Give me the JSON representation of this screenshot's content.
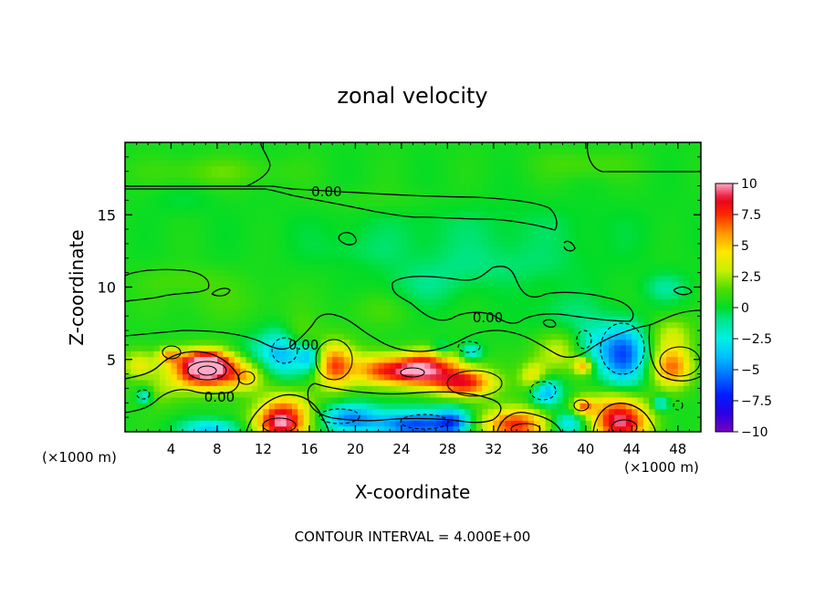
{
  "chart_data": {
    "type": "heatmap",
    "title": "zonal velocity",
    "xlabel": "X-coordinate",
    "ylabel": "Z-coordinate",
    "x_unit_left": "(×1000 m)",
    "x_unit_right": "(×1000 m)",
    "footer": "CONTOUR INTERVAL = 4.000E+00",
    "xlim": [
      0,
      50
    ],
    "ylim": [
      0,
      20
    ],
    "x_ticks": [
      4,
      8,
      12,
      16,
      20,
      24,
      28,
      32,
      36,
      40,
      44,
      48
    ],
    "x_tick_labels": [
      "4",
      "8",
      "12",
      "16",
      "20",
      "24",
      "28",
      "32",
      "36",
      "40",
      "44",
      "48"
    ],
    "y_ticks": [
      5,
      10,
      15
    ],
    "y_tick_labels": [
      "5",
      "10",
      "15"
    ],
    "colorbar": {
      "ticks": [
        10,
        7.5,
        5,
        2.5,
        0,
        -2.5,
        -5,
        -7.5,
        -10
      ],
      "tick_labels": [
        "10",
        "7.5",
        "5",
        "2.5",
        "0",
        "−2.5",
        "−5",
        "−7.5",
        "−10"
      ],
      "range": [
        -10,
        10
      ]
    },
    "contour_labels": [
      {
        "text": "0.00",
        "x": 17.5,
        "y": 16.4
      },
      {
        "text": "0.00",
        "x": 31.5,
        "y": 7.7
      },
      {
        "text": "0.00",
        "x": 15.5,
        "y": 5.8
      },
      {
        "text": "0.00",
        "x": 8.2,
        "y": 2.2
      }
    ],
    "blobs": [
      {
        "x": 7.2,
        "z": 4.2,
        "rx": 3.0,
        "rz": 1.2,
        "v": 10.0
      },
      {
        "x": 7.0,
        "z": 5.0,
        "rx": 2.0,
        "rz": 0.8,
        "v": 5.0
      },
      {
        "x": 3.8,
        "z": 5.3,
        "rx": 1.0,
        "rz": 0.6,
        "v": 4.0
      },
      {
        "x": 1.2,
        "z": 4.7,
        "rx": 1.5,
        "rz": 1.0,
        "v": 3.5
      },
      {
        "x": 10.5,
        "z": 3.8,
        "rx": 1.5,
        "rz": 1.0,
        "v": 2.5
      },
      {
        "x": 13.5,
        "z": 0.6,
        "rx": 2.2,
        "rz": 1.2,
        "v": 9.0
      },
      {
        "x": 14.0,
        "z": 2.0,
        "rx": 2.5,
        "rz": 1.2,
        "v": 3.0
      },
      {
        "x": 18.2,
        "z": 4.6,
        "rx": 1.7,
        "rz": 1.6,
        "v": 6.5
      },
      {
        "x": 21.5,
        "z": 4.4,
        "rx": 1.8,
        "rz": 1.2,
        "v": 3.0
      },
      {
        "x": 25.0,
        "z": 4.2,
        "rx": 3.4,
        "rz": 1.0,
        "v": 9.5
      },
      {
        "x": 29.5,
        "z": 3.4,
        "rx": 2.6,
        "rz": 1.0,
        "v": 7.5
      },
      {
        "x": 27.0,
        "z": 5.2,
        "rx": 3.0,
        "rz": 0.8,
        "v": 3.0
      },
      {
        "x": 33.8,
        "z": 0.5,
        "rx": 2.8,
        "rz": 1.2,
        "v": 7.5
      },
      {
        "x": 35.5,
        "z": 3.8,
        "rx": 1.2,
        "rz": 1.0,
        "v": 4.0
      },
      {
        "x": 37.5,
        "z": 5.6,
        "rx": 2.0,
        "rz": 1.5,
        "v": 3.0
      },
      {
        "x": 39.8,
        "z": 4.6,
        "rx": 0.8,
        "rz": 0.6,
        "v": 5.0
      },
      {
        "x": 39.8,
        "z": 1.8,
        "rx": 0.9,
        "rz": 0.6,
        "v": 5.0
      },
      {
        "x": 43.0,
        "z": 0.6,
        "rx": 2.5,
        "rz": 1.3,
        "v": 8.5
      },
      {
        "x": 42.5,
        "z": 2.0,
        "rx": 2.5,
        "rz": 1.0,
        "v": 3.0
      },
      {
        "x": 47.5,
        "z": 4.5,
        "rx": 1.8,
        "rz": 1.4,
        "v": 6.0
      },
      {
        "x": 47.5,
        "z": 6.8,
        "rx": 1.8,
        "rz": 1.2,
        "v": 2.5
      },
      {
        "x": 15.0,
        "z": 6.5,
        "rx": 1.6,
        "rz": 1.4,
        "v": 2.0
      },
      {
        "x": 3.0,
        "z": 2.8,
        "rx": 2.2,
        "rz": 1.2,
        "v": 1.5
      },
      {
        "x": 11.5,
        "z": 5.5,
        "rx": 2.0,
        "rz": 1.2,
        "v": -1.5
      },
      {
        "x": 13.8,
        "z": 5.5,
        "rx": 1.8,
        "rz": 1.6,
        "v": -4.5
      },
      {
        "x": 16.0,
        "z": 5.2,
        "rx": 1.0,
        "rz": 1.0,
        "v": -4.0
      },
      {
        "x": 19.5,
        "z": 1.0,
        "rx": 2.5,
        "rz": 1.0,
        "v": -5.0
      },
      {
        "x": 25.0,
        "z": 0.5,
        "rx": 3.5,
        "rz": 1.0,
        "v": -6.5
      },
      {
        "x": 28.5,
        "z": 0.7,
        "rx": 1.5,
        "rz": 1.0,
        "v": -5.0
      },
      {
        "x": 30.0,
        "z": 5.5,
        "rx": 1.0,
        "rz": 0.6,
        "v": -4.0
      },
      {
        "x": 27.5,
        "z": 5.7,
        "rx": 0.9,
        "rz": 0.6,
        "v": -3.0
      },
      {
        "x": 36.5,
        "z": 2.8,
        "rx": 1.3,
        "rz": 1.0,
        "v": -5.0
      },
      {
        "x": 40.5,
        "z": 6.0,
        "rx": 1.5,
        "rz": 1.5,
        "v": -2.0
      },
      {
        "x": 43.2,
        "z": 5.4,
        "rx": 2.0,
        "rz": 2.0,
        "v": -6.5
      },
      {
        "x": 7.5,
        "z": 0.3,
        "rx": 2.5,
        "rz": 0.6,
        "v": -4.0
      },
      {
        "x": 38.5,
        "z": 0.6,
        "rx": 1.5,
        "rz": 0.8,
        "v": -4.0
      },
      {
        "x": 1.7,
        "z": 2.5,
        "rx": 0.7,
        "rz": 0.6,
        "v": -3.5
      },
      {
        "x": 46.5,
        "z": 2.0,
        "rx": 0.7,
        "rz": 0.5,
        "v": -3.5
      },
      {
        "x": 47.0,
        "z": 10.0,
        "rx": 2.0,
        "rz": 1.0,
        "v": -1.5
      },
      {
        "x": 38.0,
        "z": 8.0,
        "rx": 3.0,
        "rz": 1.8,
        "v": -1.2
      },
      {
        "x": 32.0,
        "z": 11.5,
        "rx": 8.0,
        "rz": 1.5,
        "v": -1.0
      },
      {
        "x": 26.0,
        "z": 10.0,
        "rx": 4.0,
        "rz": 1.5,
        "v": -1.0
      },
      {
        "x": 9.0,
        "z": 9.0,
        "rx": 6.0,
        "rz": 1.5,
        "v": 0.6
      },
      {
        "x": 5.0,
        "z": 10.5,
        "rx": 4.0,
        "rz": 1.0,
        "v": 0.8
      },
      {
        "x": 22.0,
        "z": 8.5,
        "rx": 3.0,
        "rz": 1.2,
        "v": 0.8
      },
      {
        "x": 30.0,
        "z": 14.0,
        "rx": 15.0,
        "rz": 2.0,
        "v": -0.8
      },
      {
        "x": 22.0,
        "z": 16.0,
        "rx": 6.0,
        "rz": 1.0,
        "v": 0.5
      },
      {
        "x": 8.0,
        "z": 18.0,
        "rx": 6.0,
        "rz": 1.0,
        "v": 1.2
      },
      {
        "x": 40.0,
        "z": 18.5,
        "rx": 4.0,
        "rz": 1.0,
        "v": 1.0
      },
      {
        "x": 5.0,
        "z": 16.0,
        "rx": 3.0,
        "rz": 1.0,
        "v": -0.5
      },
      {
        "x": 20.0,
        "z": 12.5,
        "rx": 4.0,
        "rz": 1.0,
        "v": -0.5
      }
    ]
  }
}
